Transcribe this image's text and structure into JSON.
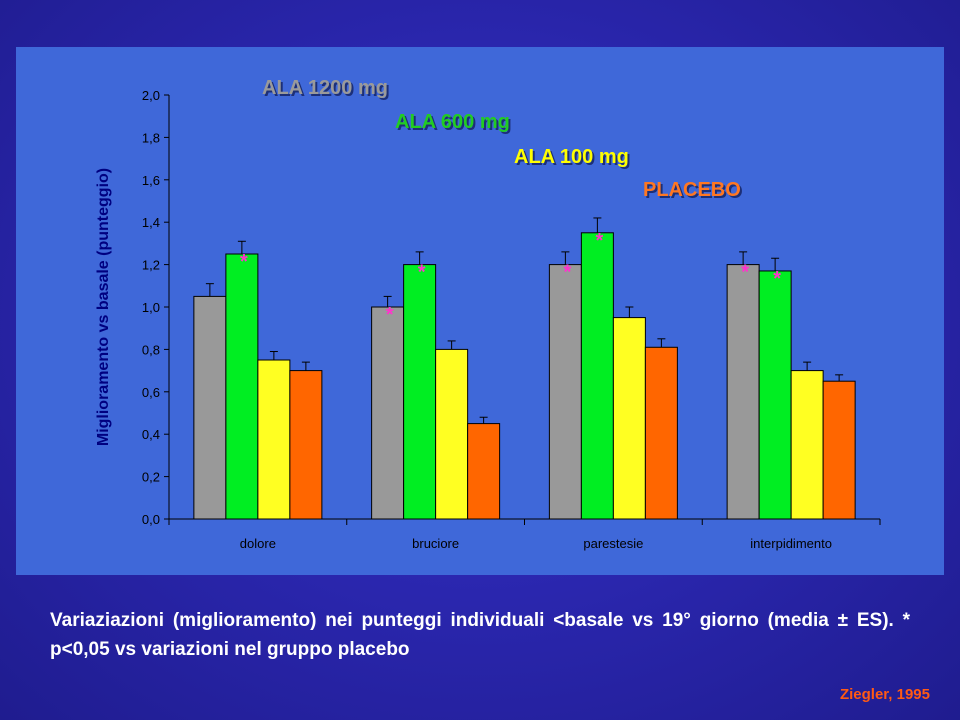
{
  "chart_data": {
    "type": "bar",
    "ylabel": "Miglioramento vs basale (punteggio)",
    "xlabel": "",
    "ylim": [
      0,
      2.0
    ],
    "yticks": [
      "0,0",
      "0,2",
      "0,4",
      "0,6",
      "0,8",
      "1,0",
      "1,2",
      "1,4",
      "1,6",
      "1,8",
      "2,0"
    ],
    "categories": [
      "dolore",
      "bruciore",
      "parestesie",
      "interpidimento"
    ],
    "legend_placement": "top-center",
    "grid": false,
    "series": [
      {
        "name": "ALA 1200 mg",
        "color": "#999999",
        "legend_color": "#9a9a9a",
        "values": [
          1.05,
          1.0,
          1.2,
          1.2
        ],
        "errors": [
          0.06,
          0.05,
          0.06,
          0.06
        ],
        "significant": [
          false,
          true,
          true,
          true
        ]
      },
      {
        "name": "ALA 600 mg",
        "color": "#00ee22",
        "legend_color": "#22cc22",
        "values": [
          1.25,
          1.2,
          1.35,
          1.17
        ],
        "errors": [
          0.06,
          0.06,
          0.07,
          0.06
        ],
        "significant": [
          true,
          true,
          true,
          true
        ]
      },
      {
        "name": "ALA 100 mg",
        "color": "#ffff22",
        "legend_color": "#ffff00",
        "values": [
          0.75,
          0.8,
          0.95,
          0.7
        ],
        "errors": [
          0.04,
          0.04,
          0.05,
          0.04
        ],
        "significant": [
          false,
          false,
          false,
          false
        ]
      },
      {
        "name": "PLACEBO",
        "color": "#ff6600",
        "legend_color": "#ff7722",
        "values": [
          0.7,
          0.45,
          0.81,
          0.65
        ],
        "errors": [
          0.04,
          0.03,
          0.04,
          0.03
        ],
        "significant": [
          false,
          false,
          false,
          false
        ]
      }
    ],
    "significance_marker": "*",
    "significance_color": "#ff33cc",
    "axis_color": "#000000",
    "tick_label_color": "#000000",
    "ylabel_color": "#000080"
  },
  "caption": "Variaziazioni (miglioramento) nei punteggi individuali <basale vs 19° giorno (media ± ES). * p<0,05 vs variazioni nel gruppo placebo",
  "source": "Ziegler, 1995"
}
